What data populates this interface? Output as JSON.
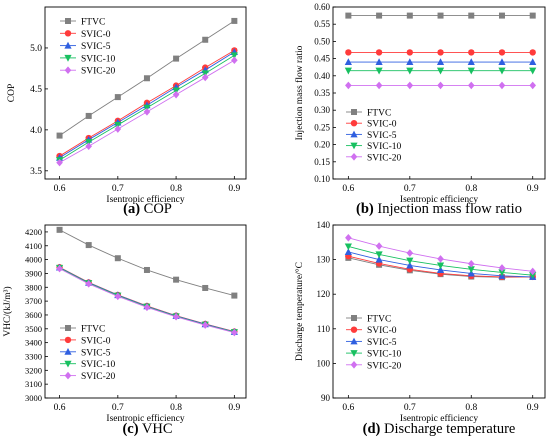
{
  "figure": {
    "series_styles": [
      {
        "name": "FTVC",
        "color": "#808080",
        "marker": "square"
      },
      {
        "name": "SVIC-0",
        "color": "#ff3b3b",
        "marker": "circle"
      },
      {
        "name": "SVIC-5",
        "color": "#2f5fe0",
        "marker": "triangle-up"
      },
      {
        "name": "SVIC-10",
        "color": "#18c060",
        "marker": "triangle-down"
      },
      {
        "name": "SVIC-20",
        "color": "#d070f0",
        "marker": "diamond"
      }
    ]
  },
  "chart_data": [
    {
      "type": "line",
      "caption_letter": "(a)",
      "caption_text": "COP",
      "xlabel": "Isentropic efficiency",
      "ylabel": "COP",
      "xlim": [
        0.575,
        0.92
      ],
      "ylim": [
        3.4,
        5.5
      ],
      "xticks": [
        "0.6",
        "0.7",
        "0.8",
        "0.9"
      ],
      "xtick_values": [
        0.6,
        0.7,
        0.8,
        0.9
      ],
      "yticks": [
        "3.5",
        "4.0",
        "4.5",
        "5.0"
      ],
      "ytick_values": [
        3.5,
        4.0,
        4.5,
        5.0
      ],
      "legend_position": "top-left",
      "x": [
        0.6,
        0.65,
        0.7,
        0.75,
        0.8,
        0.85,
        0.9
      ],
      "series": [
        {
          "name": "FTVC",
          "values": [
            3.93,
            4.17,
            4.4,
            4.63,
            4.87,
            5.1,
            5.33
          ]
        },
        {
          "name": "SVIC-0",
          "values": [
            3.68,
            3.9,
            4.11,
            4.33,
            4.54,
            4.76,
            4.97
          ]
        },
        {
          "name": "SVIC-5",
          "values": [
            3.66,
            3.88,
            4.09,
            4.3,
            4.52,
            4.73,
            4.95
          ]
        },
        {
          "name": "SVIC-10",
          "values": [
            3.63,
            3.85,
            4.06,
            4.27,
            4.48,
            4.69,
            4.91
          ]
        },
        {
          "name": "SVIC-20",
          "values": [
            3.6,
            3.8,
            4.01,
            4.22,
            4.43,
            4.64,
            4.85
          ]
        }
      ]
    },
    {
      "type": "line",
      "caption_letter": "(b)",
      "caption_text": "Injection mass flow ratio",
      "xlabel": "Isentropic efficiency",
      "ylabel": "Injection mass flow ratio",
      "xlim": [
        0.575,
        0.92
      ],
      "ylim": [
        0.1,
        0.6
      ],
      "xticks": [
        "0.6",
        "0.7",
        "0.8",
        "0.9"
      ],
      "xtick_values": [
        0.6,
        0.7,
        0.8,
        0.9
      ],
      "yticks": [
        "0.10",
        "0.15",
        "0.20",
        "0.25",
        "0.30",
        "0.35",
        "0.40",
        "0.45",
        "0.50",
        "0.55",
        "0.60"
      ],
      "ytick_values": [
        0.1,
        0.15,
        0.2,
        0.25,
        0.3,
        0.35,
        0.4,
        0.45,
        0.5,
        0.55,
        0.6
      ],
      "legend_position": "center-left",
      "x": [
        0.6,
        0.65,
        0.7,
        0.75,
        0.8,
        0.85,
        0.9
      ],
      "series": [
        {
          "name": "FTVC",
          "values": [
            0.575,
            0.575,
            0.575,
            0.575,
            0.575,
            0.575,
            0.575
          ]
        },
        {
          "name": "SVIC-0",
          "values": [
            0.468,
            0.468,
            0.468,
            0.468,
            0.468,
            0.468,
            0.468
          ]
        },
        {
          "name": "SVIC-5",
          "values": [
            0.44,
            0.44,
            0.44,
            0.44,
            0.44,
            0.44,
            0.44
          ]
        },
        {
          "name": "SVIC-10",
          "values": [
            0.415,
            0.415,
            0.415,
            0.415,
            0.415,
            0.415,
            0.415
          ]
        },
        {
          "name": "SVIC-20",
          "values": [
            0.372,
            0.372,
            0.372,
            0.372,
            0.372,
            0.372,
            0.372
          ]
        }
      ]
    },
    {
      "type": "line",
      "caption_letter": "(c)",
      "caption_text": "VHC",
      "xlabel": "Isentropic efficiency",
      "ylabel": "VHC/(kJ/m³)",
      "xlim": [
        0.575,
        0.92
      ],
      "ylim": [
        3000,
        4250
      ],
      "xticks": [
        "0.6",
        "0.7",
        "0.8",
        "0.9"
      ],
      "xtick_values": [
        0.6,
        0.7,
        0.8,
        0.9
      ],
      "yticks": [
        "3000",
        "3100",
        "3200",
        "3300",
        "3400",
        "3500",
        "3600",
        "3700",
        "3800",
        "3900",
        "4000",
        "4100",
        "4200"
      ],
      "ytick_values": [
        3000,
        3100,
        3200,
        3300,
        3400,
        3500,
        3600,
        3700,
        3800,
        3900,
        4000,
        4100,
        4200
      ],
      "legend_position": "bottom-left",
      "x": [
        0.6,
        0.65,
        0.7,
        0.75,
        0.8,
        0.85,
        0.9
      ],
      "series": [
        {
          "name": "FTVC",
          "values": [
            4215,
            4105,
            4010,
            3925,
            3855,
            3795,
            3740
          ]
        },
        {
          "name": "SVIC-0",
          "values": [
            3945,
            3835,
            3745,
            3665,
            3595,
            3535,
            3480
          ]
        },
        {
          "name": "SVIC-5",
          "values": [
            3943,
            3833,
            3743,
            3663,
            3593,
            3533,
            3478
          ]
        },
        {
          "name": "SVIC-10",
          "values": [
            3940,
            3830,
            3740,
            3660,
            3590,
            3530,
            3476
          ]
        },
        {
          "name": "SVIC-20",
          "values": [
            3935,
            3825,
            3735,
            3655,
            3587,
            3527,
            3473
          ]
        }
      ]
    },
    {
      "type": "line",
      "caption_letter": "(d)",
      "caption_text": "Discharge temperature",
      "xlabel": "Isentropic efficiency",
      "ylabel": "Discharge temperature/°C",
      "xlim": [
        0.575,
        0.92
      ],
      "ylim": [
        90,
        140
      ],
      "xticks": [
        "0.6",
        "0.7",
        "0.8",
        "0.9"
      ],
      "xtick_values": [
        0.6,
        0.7,
        0.8,
        0.9
      ],
      "yticks": [
        "90",
        "100",
        "110",
        "120",
        "130",
        "140"
      ],
      "ytick_values": [
        90,
        100,
        110,
        120,
        130,
        140
      ],
      "legend_position": "center-left",
      "x": [
        0.6,
        0.65,
        0.7,
        0.75,
        0.8,
        0.85,
        0.9
      ],
      "series": [
        {
          "name": "FTVC",
          "values": [
            130.5,
            128.5,
            126.9,
            125.8,
            125.1,
            124.9,
            125.0
          ]
        },
        {
          "name": "SVIC-0",
          "values": [
            131.0,
            128.9,
            127.2,
            126.0,
            125.3,
            125.0,
            125.0
          ]
        },
        {
          "name": "SVIC-5",
          "values": [
            132.2,
            130.0,
            128.3,
            127.0,
            126.0,
            125.3,
            125.0
          ]
        },
        {
          "name": "SVIC-10",
          "values": [
            133.8,
            131.5,
            129.7,
            128.3,
            127.2,
            126.3,
            125.5
          ]
        },
        {
          "name": "SVIC-20",
          "values": [
            136.3,
            133.9,
            131.9,
            130.2,
            128.8,
            127.6,
            126.6
          ]
        }
      ]
    }
  ]
}
